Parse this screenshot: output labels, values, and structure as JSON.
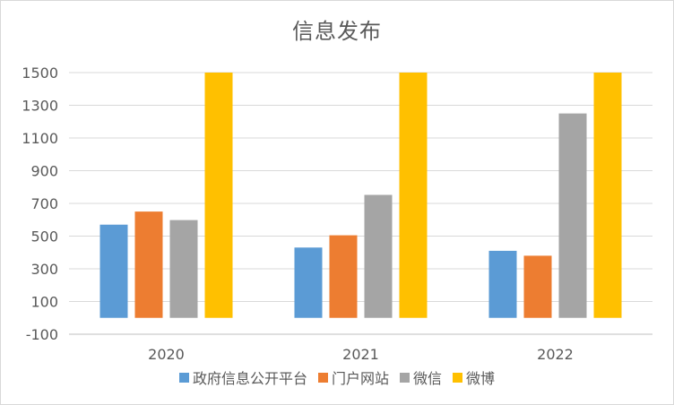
{
  "chart_data": {
    "type": "bar",
    "title": "信息发布",
    "categories": [
      "2020",
      "2021",
      "2022"
    ],
    "series": [
      {
        "name": "政府信息公开平台",
        "color": "#5b9bd5",
        "values": [
          570,
          430,
          410
        ]
      },
      {
        "name": "门户网站",
        "color": "#ed7d31",
        "values": [
          650,
          505,
          380
        ]
      },
      {
        "name": "微信",
        "color": "#a5a5a5",
        "values": [
          598,
          752,
          1250
        ]
      },
      {
        "name": "微博",
        "color": "#ffc000",
        "values": [
          1500,
          1500,
          1500
        ]
      }
    ],
    "ylim": [
      -100,
      1500
    ],
    "yticks": [
      -100,
      100,
      300,
      500,
      700,
      900,
      1100,
      1300,
      1500
    ],
    "grid": true,
    "legend_position": "bottom"
  }
}
